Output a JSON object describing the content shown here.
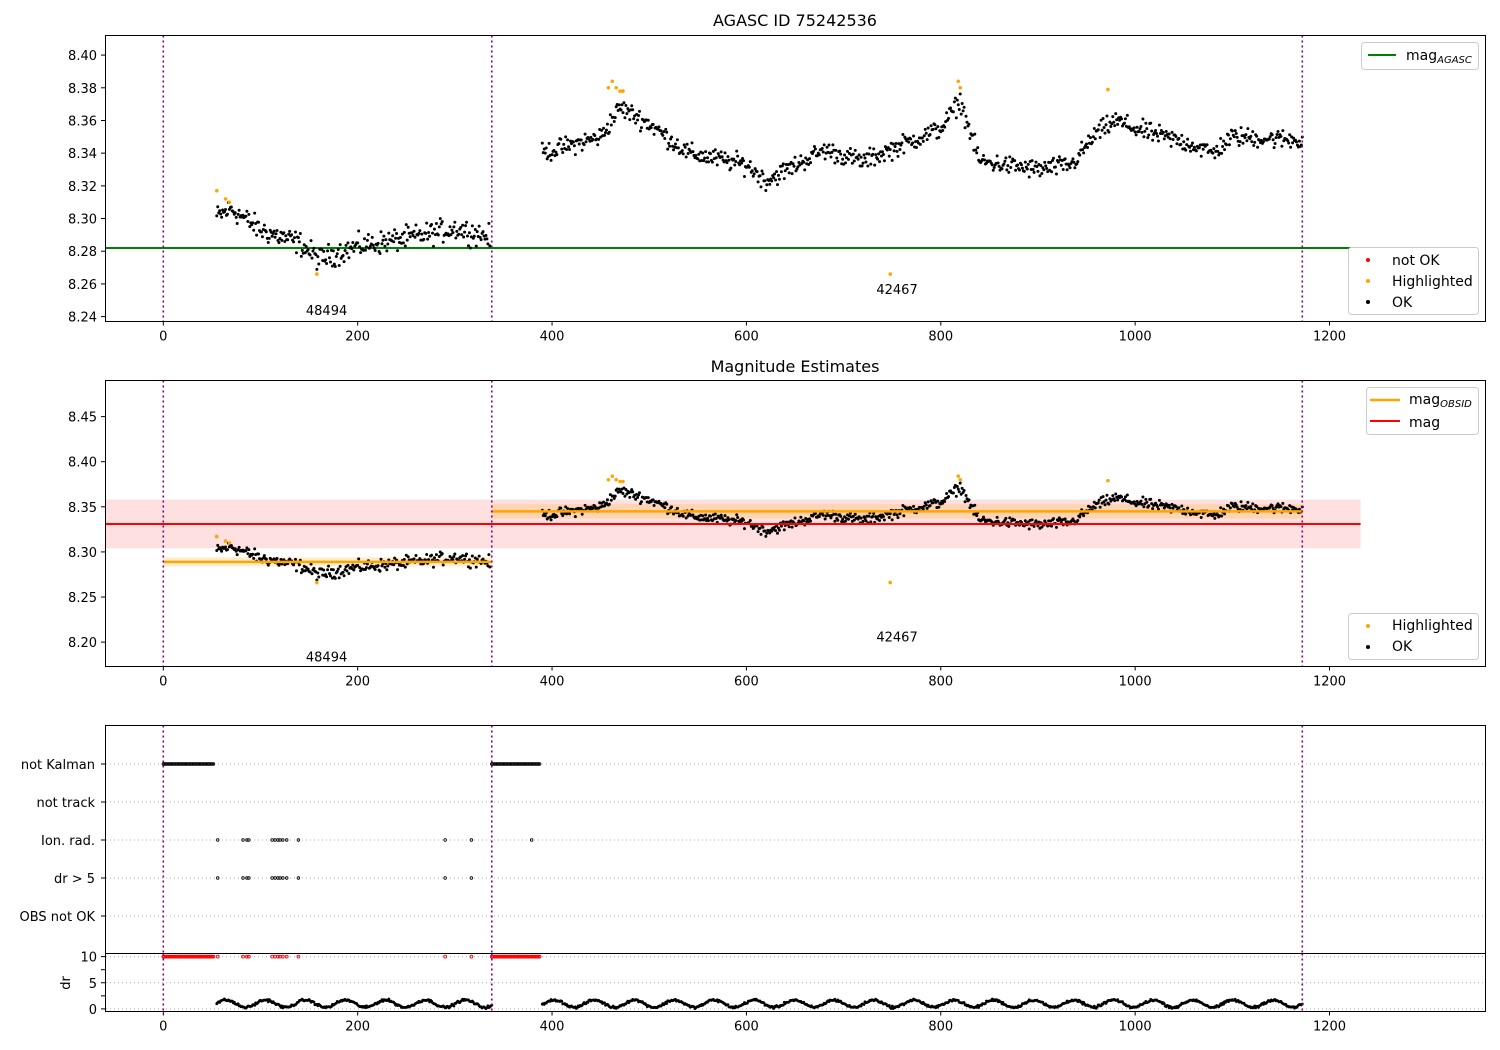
{
  "figure": {
    "title_top": "AGASC ID 75242536",
    "title_mid": "Magnitude Estimates"
  },
  "colors": {
    "ok": "#000000",
    "highlighted": "#ffa500",
    "not_ok": "#ff0000",
    "mag_agasc": "#008000",
    "mag_obsid": "#ffa500",
    "mag": "#ff0000",
    "obsid_boundary": "#800080"
  },
  "chart_data": [
    {
      "type": "scatter",
      "title": "AGASC ID 75242536",
      "xlim": [
        -60,
        1360
      ],
      "ylim": [
        8.237,
        8.412
      ],
      "xticks": [
        0,
        200,
        400,
        600,
        800,
        1000,
        1200
      ],
      "yticks": [
        8.24,
        8.26,
        8.28,
        8.3,
        8.32,
        8.34,
        8.36,
        8.38,
        8.4
      ],
      "grid": false,
      "obsid_boundaries": [
        0,
        338,
        1172
      ],
      "obsid_labels": [
        {
          "label": "48494",
          "x": 168,
          "y": 8.244
        },
        {
          "label": "42467",
          "x": 755,
          "y": 8.257
        }
      ],
      "lines": [
        {
          "name": "mag_AGASC",
          "y": 8.282,
          "x_range": [
            -60,
            1222
          ]
        }
      ],
      "legends": [
        {
          "placement": "top-right",
          "entries": [
            "mag_AGASC"
          ]
        },
        {
          "placement": "right",
          "entries": [
            "not OK",
            "Highlighted",
            "OK"
          ]
        }
      ],
      "series": [
        {
          "name": "OK",
          "segments": [
            {
              "x_range": [
                55,
                336
              ],
              "trend": [
                [
                  55,
                  8.301
                ],
                [
                  70,
                  8.306
                ],
                [
                  100,
                  8.293
                ],
                [
                  140,
                  8.285
                ],
                [
                  160,
                  8.275
                ],
                [
                  200,
                  8.283
                ],
                [
                  260,
                  8.289
                ],
                [
                  300,
                  8.294
                ],
                [
                  336,
                  8.289
                ]
              ],
              "spread": 0.006
            },
            {
              "x_range": [
                390,
                1172
              ],
              "trend": [
                [
                  390,
                  8.34
                ],
                [
                  420,
                  8.345
                ],
                [
                  450,
                  8.35
                ],
                [
                  470,
                  8.368
                ],
                [
                  500,
                  8.358
                ],
                [
                  540,
                  8.34
                ],
                [
                  600,
                  8.333
                ],
                [
                  620,
                  8.323
                ],
                [
                  680,
                  8.342
                ],
                [
                  720,
                  8.335
                ],
                [
                  760,
                  8.345
                ],
                [
                  800,
                  8.355
                ],
                [
                  820,
                  8.372
                ],
                [
                  840,
                  8.335
                ],
                [
                  900,
                  8.33
                ],
                [
                  935,
                  8.333
                ],
                [
                  960,
                  8.352
                ],
                [
                  980,
                  8.36
                ],
                [
                  1000,
                  8.355
                ],
                [
                  1060,
                  8.345
                ],
                [
                  1080,
                  8.34
                ],
                [
                  1100,
                  8.35
                ],
                [
                  1172,
                  8.348
                ]
              ],
              "spread": 0.005
            }
          ]
        },
        {
          "name": "Highlighted",
          "points": [
            [
              55,
              8.317
            ],
            [
              64,
              8.312
            ],
            [
              68,
              8.31
            ],
            [
              158,
              8.266
            ],
            [
              458,
              8.38
            ],
            [
              462,
              8.384
            ],
            [
              466,
              8.38
            ],
            [
              470,
              8.378
            ],
            [
              473,
              8.378
            ],
            [
              748,
              8.266
            ],
            [
              818,
              8.384
            ],
            [
              820,
              8.38
            ],
            [
              972,
              8.379
            ]
          ]
        }
      ]
    },
    {
      "type": "scatter",
      "title": "Magnitude Estimates",
      "xlim": [
        -60,
        1360
      ],
      "ylim": [
        8.173,
        8.49
      ],
      "xticks": [
        0,
        200,
        400,
        600,
        800,
        1000,
        1200
      ],
      "yticks": [
        8.2,
        8.25,
        8.3,
        8.35,
        8.4,
        8.45
      ],
      "grid": false,
      "obsid_boundaries": [
        0,
        338,
        1172
      ],
      "obsid_labels": [
        {
          "label": "48494",
          "x": 168,
          "y": 8.184
        },
        {
          "label": "42467",
          "x": 755,
          "y": 8.206
        }
      ],
      "bands": [
        {
          "name": "mag",
          "ymin": 8.304,
          "ymax": 8.358,
          "x_range": [
            -60,
            1232
          ]
        },
        {
          "name": "mag_OBSID",
          "ymin": 8.284,
          "ymax": 8.294,
          "x_range": [
            0,
            338
          ]
        },
        {
          "name": "mag_OBSID",
          "ymin": 8.337,
          "ymax": 8.353,
          "x_range": [
            338,
            1172
          ]
        }
      ],
      "lines": [
        {
          "name": "mag",
          "y": 8.331,
          "x_range": [
            -60,
            1232
          ]
        },
        {
          "name": "mag_OBSID",
          "y": 8.289,
          "x_range": [
            0,
            338
          ]
        },
        {
          "name": "mag_OBSID",
          "y": 8.345,
          "x_range": [
            338,
            1172
          ]
        }
      ],
      "legends": [
        {
          "placement": "top-right",
          "entries": [
            "mag_OBSID",
            "mag"
          ]
        },
        {
          "placement": "lower-right",
          "entries": [
            "Highlighted",
            "OK"
          ]
        }
      ]
    },
    {
      "type": "scatter",
      "title": "",
      "xlim": [
        -60,
        1360
      ],
      "categories": [
        "not Kalman",
        "not track",
        "Ion. rad.",
        "dr > 5",
        "OBS not OK"
      ],
      "grid": true,
      "obsid_boundaries": [
        0,
        338,
        1172
      ],
      "flags": {
        "not Kalman": [
          [
            0,
            52
          ],
          [
            338,
            388
          ]
        ],
        "not track": [],
        "Ion. rad.": [
          56,
          82,
          86,
          88,
          112,
          115,
          118,
          120,
          123,
          127,
          139,
          290,
          317,
          379
        ],
        "dr > 5": [
          56,
          82,
          86,
          88,
          112,
          115,
          118,
          120,
          123,
          127,
          139,
          290,
          317
        ],
        "OBS not OK": []
      }
    },
    {
      "type": "scatter",
      "title": "",
      "ylabel": "dr",
      "xlim": [
        -60,
        1360
      ],
      "ylim": [
        -0.5,
        10.6
      ],
      "yticks": [
        0,
        5,
        10
      ],
      "grid": true,
      "obsid_boundaries": [
        0,
        338,
        1172
      ],
      "series": [
        {
          "name": "dr",
          "x_range": [
            55,
            1172
          ],
          "y_typical": [
            0.2,
            2.0
          ],
          "gaps": [
            [
              52,
              55
            ],
            [
              338,
              390
            ]
          ]
        },
        {
          "name": "not OK",
          "y": 10,
          "x_points": [
            [
              0,
              52
            ],
            [
              338,
              388
            ],
            56,
            82,
            86,
            88,
            112,
            115,
            118,
            120,
            123,
            127,
            139,
            290,
            317
          ]
        }
      ]
    }
  ]
}
